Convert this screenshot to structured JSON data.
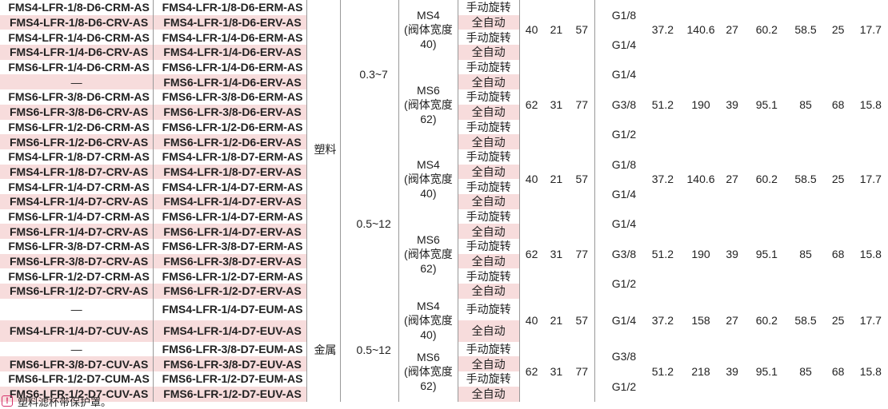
{
  "rows": [
    [
      "FMS4-LFR-1/8-D6-CRM-AS",
      "FMS4-LFR-1/8-D6-ERM-AS",
      "手动旋转"
    ],
    [
      "FMS4-LFR-1/8-D6-CRV-AS",
      "FMS4-LFR-1/8-D6-ERV-AS",
      "全自动"
    ],
    [
      "FMS4-LFR-1/4-D6-CRM-AS",
      "FMS4-LFR-1/4-D6-ERM-AS",
      "手动旋转"
    ],
    [
      "FMS4-LFR-1/4-D6-CRV-AS",
      "FMS4-LFR-1/4-D6-ERV-AS",
      "全自动"
    ],
    [
      "FMS6-LFR-1/4-D6-CRM-AS",
      "FMS6-LFR-1/4-D6-ERM-AS",
      "手动旋转"
    ],
    [
      "—",
      "FMS6-LFR-1/4-D6-ERV-AS",
      "全自动"
    ],
    [
      "FMS6-LFR-3/8-D6-CRM-AS",
      "FMS6-LFR-3/8-D6-ERM-AS",
      "手动旋转"
    ],
    [
      "FMS6-LFR-3/8-D6-CRV-AS",
      "FMS6-LFR-3/8-D6-ERV-AS",
      "全自动"
    ],
    [
      "FMS6-LFR-1/2-D6-CRM-AS",
      "FMS6-LFR-1/2-D6-ERM-AS",
      "手动旋转"
    ],
    [
      "FMS6-LFR-1/2-D6-CRV-AS",
      "FMS6-LFR-1/2-D6-ERV-AS",
      "全自动"
    ],
    [
      "FMS4-LFR-1/8-D7-CRM-AS",
      "FMS4-LFR-1/8-D7-ERM-AS",
      "手动旋转"
    ],
    [
      "FMS4-LFR-1/8-D7-CRV-AS",
      "FMS4-LFR-1/8-D7-ERV-AS",
      "全自动"
    ],
    [
      "FMS4-LFR-1/4-D7-CRM-AS",
      "FMS4-LFR-1/4-D7-ERM-AS",
      "手动旋转"
    ],
    [
      "FMS4-LFR-1/4-D7-CRV-AS",
      "FMS4-LFR-1/4-D7-ERV-AS",
      "全自动"
    ],
    [
      "FMS6-LFR-1/4-D7-CRM-AS",
      "FMS6-LFR-1/4-D7-ERM-AS",
      "手动旋转"
    ],
    [
      "FMS6-LFR-1/4-D7-CRV-AS",
      "FMS6-LFR-1/4-D7-ERV-AS",
      "全自动"
    ],
    [
      "FMS6-LFR-3/8-D7-CRM-AS",
      "FMS6-LFR-3/8-D7-ERM-AS",
      "手动旋转"
    ],
    [
      "FMS6-LFR-3/8-D7-CRV-AS",
      "FMS6-LFR-3/8-D7-ERV-AS",
      "全自动"
    ],
    [
      "FMS6-LFR-1/2-D7-CRM-AS",
      "FMS6-LFR-1/2-D7-ERM-AS",
      "手动旋转"
    ],
    [
      "FMS6-LFR-1/2-D7-CRV-AS",
      "FMS6-LFR-1/2-D7-ERV-AS",
      "全自动"
    ],
    [
      "—",
      "FMS4-LFR-1/4-D7-EUM-AS",
      "手动旋转"
    ],
    [
      "FMS4-LFR-1/4-D7-CUV-AS",
      "FMS4-LFR-1/4-D7-EUV-AS",
      "全自动"
    ],
    [
      "—",
      "FMS6-LFR-3/8-D7-EUM-AS",
      "手动旋转"
    ],
    [
      "FMS6-LFR-3/8-D7-CUV-AS",
      "FMS6-LFR-3/8-D7-EUV-AS",
      "全自动"
    ],
    [
      "FMS6-LFR-1/2-D7-CUM-AS",
      "FMS6-LFR-1/2-D7-EUM-AS",
      "手动旋转"
    ],
    [
      "FMS6-LFR-1/2-D7-CUV-AS",
      "FMS6-LFR-1/2-D7-EUV-AS",
      "全自动"
    ]
  ],
  "material": {
    "plastic": "塑料",
    "metal": "金属"
  },
  "pressure": {
    "p1": "0.3~7",
    "p2": "0.5~12",
    "p3": "0.5~12"
  },
  "size": {
    "ms4": "MS4",
    "ms4_sub": "(阀体宽度40)",
    "ms6": "MS6",
    "ms6_sub": "(阀体宽度62)"
  },
  "dims_ms4": [
    "40",
    "21",
    "57"
  ],
  "dims_ms6": [
    "62",
    "31",
    "77"
  ],
  "ports": {
    "g18": "G1/8",
    "g14": "G1/4",
    "g38": "G3/8",
    "g12": "G1/2"
  },
  "spec_ms4": [
    "37.2",
    "140.6",
    "27",
    "60.2",
    "58.5",
    "25",
    "17.7"
  ],
  "spec_ms6": [
    "51.2",
    "190",
    "39",
    "95.1",
    "85",
    "68",
    "15.8"
  ],
  "spec_ms4_metal": [
    "37.2",
    "158",
    "27",
    "60.2",
    "58.5",
    "25",
    "17.7"
  ],
  "spec_ms6_metal": [
    "51.2",
    "218",
    "39",
    "95.1",
    "85",
    "68",
    "15.8"
  ],
  "footnote": "塑料滤杯带保护罩。",
  "colors": {
    "model_text": "#1f57a8",
    "band": "#f7dcdc",
    "warn": "#d6336c"
  }
}
